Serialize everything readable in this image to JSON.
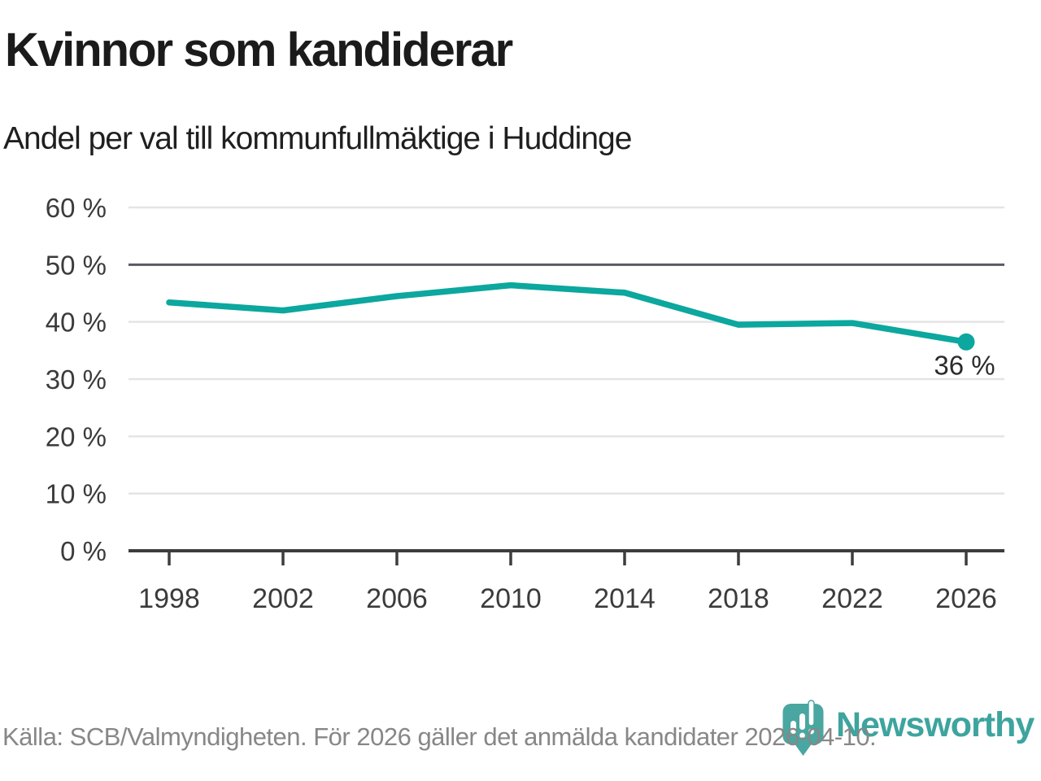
{
  "header": {
    "title": "Kvinnor som kandiderar",
    "subtitle": "Andel per val till kommunfullmäktige i Huddinge"
  },
  "footer": {
    "source": "Källa: SCB/Valmyndigheten. För 2026 gäller det anmälda kandidater 2026-04-10."
  },
  "branding": {
    "logo_text": "Newsworthy",
    "logo_icon": "newsworthy-pin-barchart-icon",
    "brand_color": "#3da49e"
  },
  "colors": {
    "line": "#0ca79e",
    "grid": "#e4e4e4",
    "grid_emphasis": "#5a5a62",
    "axis": "#3d3d3d",
    "tick_text": "#3b3b3b",
    "label_text": "#2b2b2b"
  },
  "chart_data": {
    "type": "line",
    "title": "Kvinnor som kandiderar",
    "subtitle": "Andel per val till kommunfullmäktige i Huddinge",
    "x": [
      1998,
      2002,
      2006,
      2010,
      2014,
      2018,
      2022,
      2026
    ],
    "x_tick_labels": [
      "1998",
      "2002",
      "2006",
      "2010",
      "2014",
      "2018",
      "2022",
      "2026"
    ],
    "values": [
      43.4,
      42.0,
      44.5,
      46.4,
      45.1,
      39.5,
      39.8,
      36.5
    ],
    "end_point_label": "36 %",
    "y_ticks": [
      0,
      10,
      20,
      30,
      40,
      50,
      60
    ],
    "y_tick_labels": [
      "0 %",
      "10 %",
      "20 %",
      "30 %",
      "40 %",
      "50 %",
      "60 %"
    ],
    "ylim": [
      0,
      60
    ],
    "xlim": [
      1998,
      2026
    ],
    "grid": "horizontal",
    "emphasized_gridline": 50,
    "legend": "none"
  }
}
